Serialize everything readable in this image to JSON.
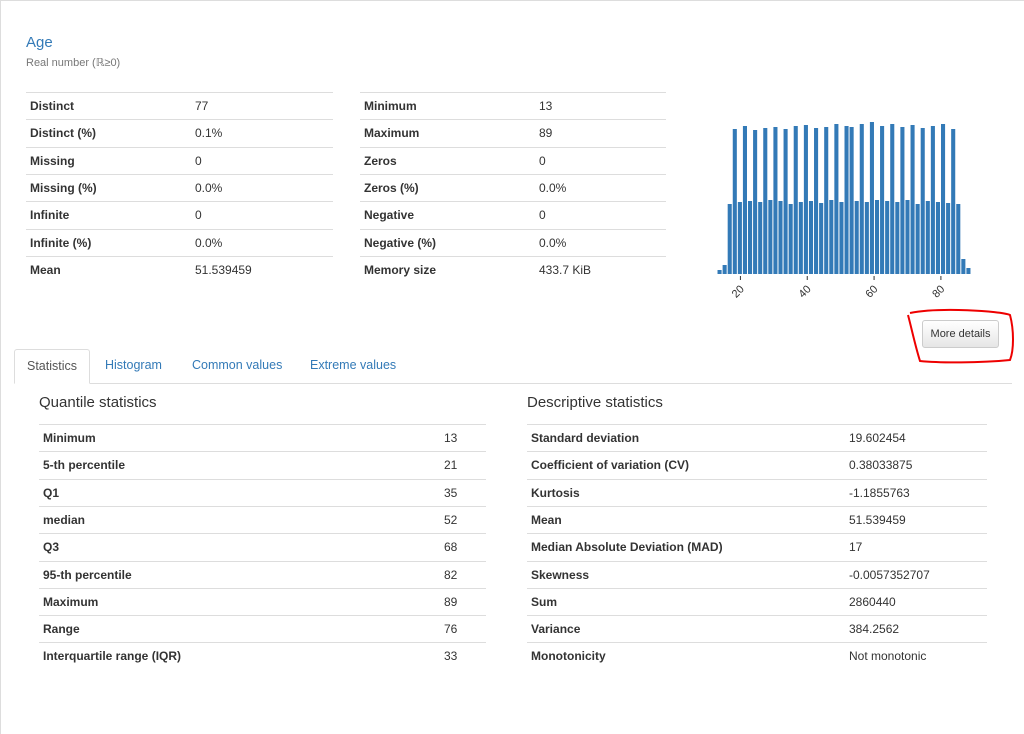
{
  "header": {
    "title": "Age",
    "subtitle": "Real number (ℝ≥0)"
  },
  "summary_left": {
    "rows": [
      [
        "Distinct",
        "77"
      ],
      [
        "Distinct (%)",
        "0.1%"
      ],
      [
        "Missing",
        "0"
      ],
      [
        "Missing (%)",
        "0.0%"
      ],
      [
        "Infinite",
        "0"
      ],
      [
        "Infinite (%)",
        "0.0%"
      ],
      [
        "Mean",
        "51.539459"
      ]
    ]
  },
  "summary_right": {
    "rows": [
      [
        "Minimum",
        "13"
      ],
      [
        "Maximum",
        "89"
      ],
      [
        "Zeros",
        "0"
      ],
      [
        "Zeros (%)",
        "0.0%"
      ],
      [
        "Negative",
        "0"
      ],
      [
        "Negative (%)",
        "0.0%"
      ],
      [
        "Memory size",
        "433.7 KiB"
      ]
    ]
  },
  "button": "More details",
  "tabs": [
    "Statistics",
    "Histogram",
    "Common values",
    "Extreme values"
  ],
  "quantile": {
    "title": "Quantile statistics",
    "rows": [
      [
        "Minimum",
        "13"
      ],
      [
        "5-th percentile",
        "21"
      ],
      [
        "Q1",
        "35"
      ],
      [
        "median",
        "52"
      ],
      [
        "Q3",
        "68"
      ],
      [
        "95-th percentile",
        "82"
      ],
      [
        "Maximum",
        "89"
      ],
      [
        "Range",
        "76"
      ],
      [
        "Interquartile range (IQR)",
        "33"
      ]
    ]
  },
  "descriptive": {
    "title": "Descriptive statistics",
    "rows": [
      [
        "Standard deviation",
        "19.602454"
      ],
      [
        "Coefficient of variation (CV)",
        "0.38033875"
      ],
      [
        "Kurtosis",
        "-1.1855763"
      ],
      [
        "Mean",
        "51.539459"
      ],
      [
        "Median Absolute Deviation (MAD)",
        "17"
      ],
      [
        "Skewness",
        "-0.0057352707"
      ],
      [
        "Sum",
        "2860440"
      ],
      [
        "Variance",
        "384.2562"
      ],
      [
        "Monotonicity",
        "Not monotonic"
      ]
    ]
  },
  "chart_data": {
    "type": "histogram",
    "color": "#337ab7",
    "bins": [
      13,
      14.52,
      16.04,
      17.56,
      19.08,
      20.6,
      22.12,
      23.64,
      25.16,
      26.68,
      28.2,
      29.72,
      31.24,
      32.76,
      34.28,
      35.8,
      37.32,
      38.84,
      40.36,
      41.88,
      43.4,
      44.92,
      46.44,
      47.96,
      49.48,
      51,
      52.52,
      54.04,
      55.56,
      57.08,
      58.6,
      60.12,
      61.64,
      63.16,
      64.68,
      66.2,
      67.72,
      69.24,
      70.76,
      72.28,
      73.8,
      75.32,
      76.84,
      78.36,
      79.88,
      81.4,
      82.92,
      84.44,
      85.96,
      87.48,
      89
    ],
    "values": [
      40,
      90,
      700,
      1450,
      720,
      1480,
      730,
      1440,
      720,
      1460,
      740,
      1470,
      730,
      1450,
      700,
      1480,
      720,
      1490,
      730,
      1460,
      710,
      1470,
      740,
      1500,
      720,
      1480,
      1470,
      730,
      1500,
      720,
      1520,
      740,
      1480,
      730,
      1500,
      720,
      1470,
      740,
      1490,
      700,
      1460,
      730,
      1480,
      720,
      1500,
      710,
      1450,
      700,
      150,
      60
    ],
    "xlim": [
      10,
      92
    ],
    "ylim": [
      0,
      1600
    ],
    "xticks": [
      20,
      40,
      60,
      80
    ]
  }
}
